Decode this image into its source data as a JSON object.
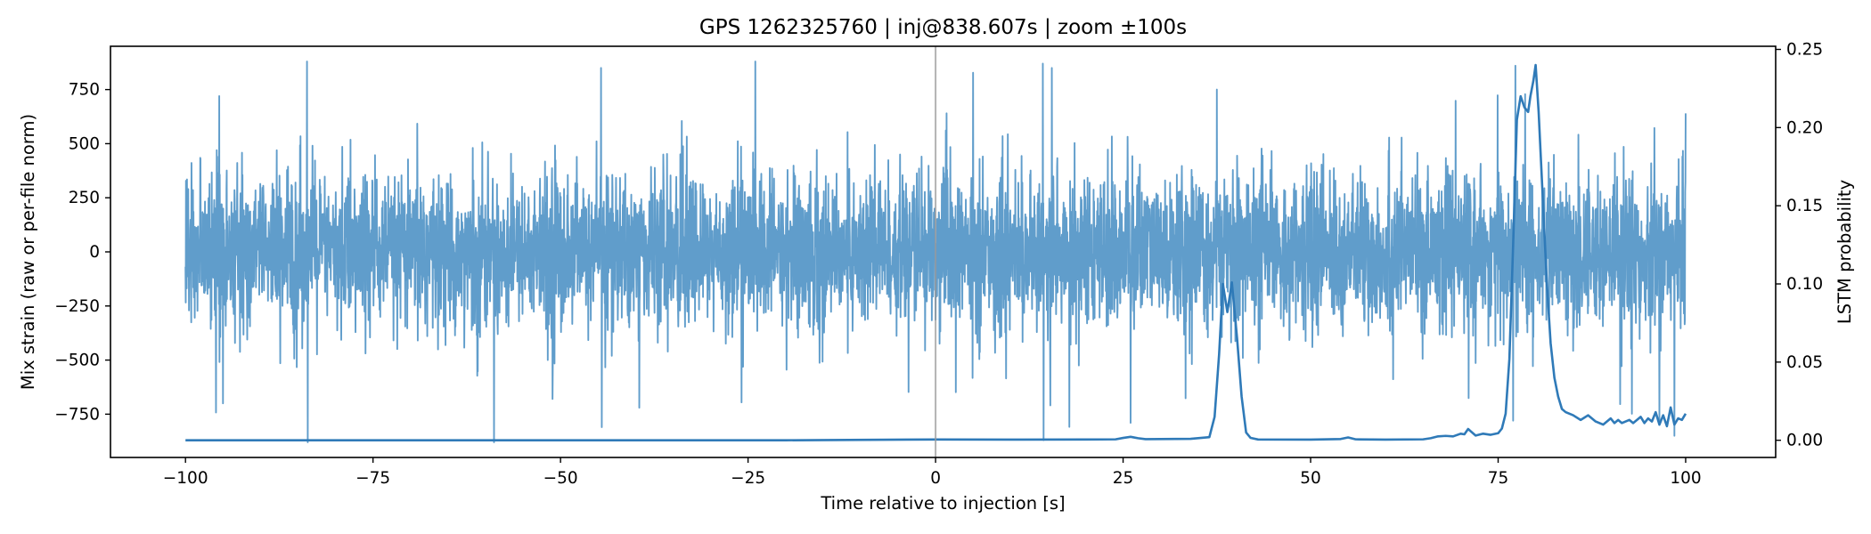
{
  "chart_data": {
    "type": "line",
    "title": "GPS 1262325760 | inj@838.607s | zoom ±100s",
    "xlabel": "Time relative to injection [s]",
    "ylabel_left": "Mix strain (raw or per-file norm)",
    "ylabel_right": "LSTM probability",
    "xlim": [
      -110,
      112
    ],
    "ylim_left": [
      -950,
      950
    ],
    "ylim_right": [
      -0.011,
      0.252
    ],
    "x_ticks": [
      -100,
      -75,
      -50,
      -25,
      0,
      25,
      50,
      75,
      100
    ],
    "x_tick_labels": [
      "−100",
      "−75",
      "−50",
      "−25",
      "0",
      "25",
      "50",
      "75",
      "100"
    ],
    "y_left_ticks": [
      -750,
      -500,
      -250,
      0,
      250,
      500,
      750
    ],
    "y_left_tick_labels": [
      "−750",
      "−500",
      "−250",
      "0",
      "250",
      "500",
      "750"
    ],
    "y_right_ticks": [
      0.0,
      0.05,
      0.1,
      0.15,
      0.2,
      0.25
    ],
    "y_right_tick_labels": [
      "0.00",
      "0.05",
      "0.10",
      "0.15",
      "0.20",
      "0.25"
    ],
    "injection_line_x": 0,
    "grid": false,
    "colors": {
      "strain": "#4a90c4",
      "probability": "#2f7ab8",
      "injection_line": "#999999",
      "axes": "#000000"
    },
    "series": [
      {
        "axis": "left",
        "style": "noise",
        "x_range": [
          -100,
          100
        ],
        "typical_amplitude": 250,
        "clip": [
          -880,
          880
        ],
        "bursts": [
          {
            "x": -83.8,
            "y": 880
          },
          {
            "x": -83.7,
            "y": -880
          },
          {
            "x": -98.0,
            "y": 430
          },
          {
            "x": -95.5,
            "y": 720
          },
          {
            "x": -95.0,
            "y": -700
          },
          {
            "x": -44.6,
            "y": 850
          },
          {
            "x": -44.5,
            "y": -810
          },
          {
            "x": -39.5,
            "y": -720
          },
          {
            "x": 14.3,
            "y": 870
          },
          {
            "x": 14.4,
            "y": -870
          },
          {
            "x": 15.5,
            "y": 850
          },
          {
            "x": 26.0,
            "y": -790
          },
          {
            "x": 37.5,
            "y": 750
          },
          {
            "x": 77.0,
            "y": -780
          },
          {
            "x": 77.3,
            "y": 860
          },
          {
            "x": 96.5,
            "y": -780
          },
          {
            "x": 98.5,
            "y": -850
          },
          {
            "x": 100.0,
            "y": 640
          }
        ]
      },
      {
        "axis": "right",
        "style": "line",
        "x": [
          -100,
          -80,
          -60,
          -40,
          -20,
          0,
          10,
          20,
          24,
          25,
          26,
          27,
          28,
          30,
          34,
          36.5,
          37.2,
          37.8,
          38.3,
          38.9,
          39.5,
          40.2,
          40.8,
          41.4,
          42,
          43,
          50,
          54,
          55,
          56,
          60,
          65,
          66,
          67,
          68,
          69,
          70,
          70.5,
          71,
          72,
          73,
          74,
          75,
          75.5,
          76,
          76.5,
          77,
          77.5,
          78,
          78.5,
          79,
          79.3,
          79.7,
          80,
          80.4,
          81,
          81.5,
          82,
          82.5,
          83,
          83.5,
          84,
          85,
          86,
          87,
          88,
          89,
          90,
          90.5,
          91,
          91.5,
          92,
          92.5,
          93,
          93.5,
          94,
          94.5,
          95,
          95.5,
          96,
          96.5,
          97,
          97.5,
          98,
          98.5,
          99,
          99.5,
          100
        ],
        "y": [
          0.0,
          0.0,
          0.0,
          0.0,
          0.0,
          0.0005,
          0.0004,
          0.0005,
          0.0006,
          0.0015,
          0.0022,
          0.0013,
          0.0007,
          0.0008,
          0.0009,
          0.002,
          0.015,
          0.055,
          0.1,
          0.082,
          0.101,
          0.065,
          0.028,
          0.005,
          0.0015,
          0.0005,
          0.0004,
          0.0008,
          0.0018,
          0.0006,
          0.0004,
          0.0006,
          0.0013,
          0.0025,
          0.0028,
          0.0025,
          0.0042,
          0.0038,
          0.0072,
          0.003,
          0.0042,
          0.0035,
          0.0045,
          0.0075,
          0.017,
          0.052,
          0.125,
          0.205,
          0.22,
          0.213,
          0.21,
          0.22,
          0.23,
          0.24,
          0.21,
          0.15,
          0.1,
          0.062,
          0.04,
          0.028,
          0.02,
          0.018,
          0.016,
          0.013,
          0.016,
          0.012,
          0.01,
          0.014,
          0.011,
          0.013,
          0.011,
          0.012,
          0.013,
          0.011,
          0.013,
          0.015,
          0.011,
          0.014,
          0.012,
          0.018,
          0.01,
          0.016,
          0.009,
          0.021,
          0.01,
          0.014,
          0.013,
          0.017
        ]
      }
    ]
  }
}
